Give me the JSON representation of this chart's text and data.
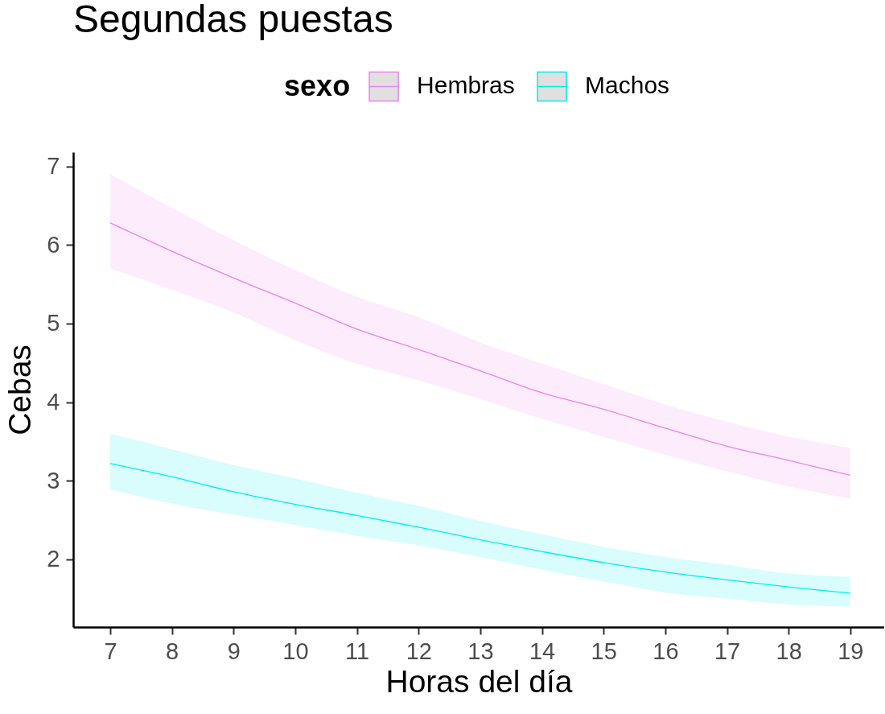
{
  "chart_data": {
    "type": "line",
    "title": "Segundas puestas",
    "xlabel": "Horas del día",
    "ylabel": "Cebas",
    "legend_title": "sexo",
    "legend": "top",
    "grid": false,
    "line_style": "solid",
    "x": [
      7,
      8,
      9,
      10,
      11,
      12,
      13,
      14,
      15,
      16,
      17,
      18,
      19
    ],
    "xlim": [
      6.4,
      19.55
    ],
    "xticks": [
      7,
      8,
      9,
      10,
      11,
      12,
      13,
      14,
      15,
      16,
      17,
      18,
      19
    ],
    "ylim": [
      1.14,
      7.18
    ],
    "yticks": [
      2,
      3,
      4,
      5,
      6,
      7
    ],
    "series": [
      {
        "name": "Hembras",
        "color": "#ee82ee",
        "values": [
          6.28,
          5.92,
          5.58,
          5.26,
          4.93,
          4.67,
          4.4,
          4.12,
          3.91,
          3.67,
          3.44,
          3.26,
          3.07
        ],
        "upper": [
          6.9,
          6.47,
          6.06,
          5.68,
          5.34,
          5.08,
          4.76,
          4.49,
          4.23,
          3.97,
          3.75,
          3.56,
          3.42
        ],
        "lower": [
          5.7,
          5.43,
          5.14,
          4.79,
          4.49,
          4.28,
          4.04,
          3.79,
          3.56,
          3.33,
          3.12,
          2.93,
          2.77
        ]
      },
      {
        "name": "Machos",
        "color": "#00eeee",
        "values": [
          3.22,
          3.05,
          2.86,
          2.7,
          2.56,
          2.41,
          2.25,
          2.1,
          1.96,
          1.84,
          1.74,
          1.65,
          1.57
        ],
        "upper": [
          3.6,
          3.4,
          3.2,
          3.03,
          2.85,
          2.68,
          2.49,
          2.32,
          2.16,
          2.03,
          1.93,
          1.82,
          1.78
        ],
        "lower": [
          2.89,
          2.71,
          2.57,
          2.44,
          2.3,
          2.18,
          2.03,
          1.87,
          1.72,
          1.58,
          1.5,
          1.43,
          1.4
        ]
      }
    ]
  }
}
